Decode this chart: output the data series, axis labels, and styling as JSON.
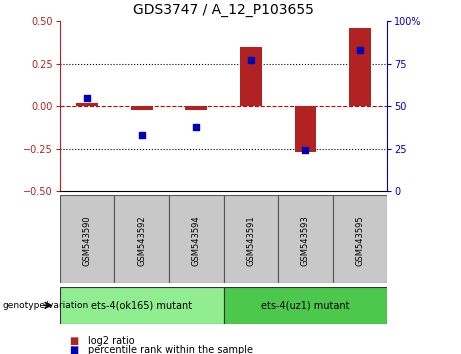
{
  "title": "GDS3747 / A_12_P103655",
  "samples": [
    "GSM543590",
    "GSM543592",
    "GSM543594",
    "GSM543591",
    "GSM543593",
    "GSM543595"
  ],
  "log2_ratio": [
    0.02,
    -0.02,
    -0.02,
    0.35,
    -0.27,
    0.46
  ],
  "percentile_rank": [
    55,
    33,
    38,
    77,
    24,
    83
  ],
  "ylim_left": [
    -0.5,
    0.5
  ],
  "ylim_right": [
    0,
    100
  ],
  "yticks_left": [
    -0.5,
    -0.25,
    0,
    0.25,
    0.5
  ],
  "yticks_right": [
    0,
    25,
    50,
    75,
    100
  ],
  "groups": [
    {
      "label": "ets-4(ok165) mutant",
      "indices": [
        0,
        1,
        2
      ],
      "color": "#90ee90"
    },
    {
      "label": "ets-4(uz1) mutant",
      "indices": [
        3,
        4,
        5
      ],
      "color": "#4cc94c"
    }
  ],
  "bar_color": "#b22222",
  "scatter_color": "#0000bb",
  "dashed_line_color": "#cc0000",
  "bg_plot": "#ffffff",
  "bg_label": "#c8c8c8",
  "legend_items": [
    "log2 ratio",
    "percentile rank within the sample"
  ],
  "title_fontsize": 10,
  "tick_fontsize": 7,
  "label_fontsize": 6,
  "geno_fontsize": 7,
  "bar_width": 0.4
}
